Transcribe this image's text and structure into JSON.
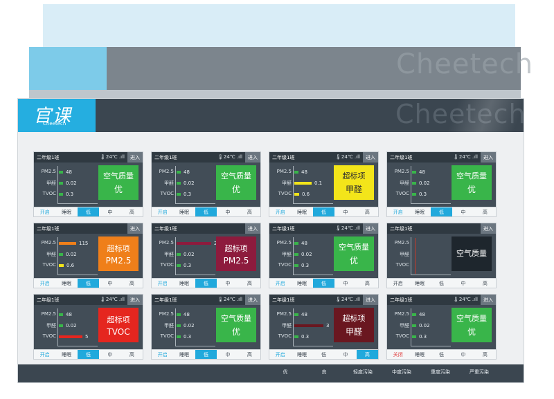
{
  "logo": {
    "main": "官课",
    "sub": "Cheetech"
  },
  "watermark": "Cheetech",
  "colors": {
    "good": "#39b54a",
    "fair": "#f3e51a",
    "light": "#ef7f1a",
    "moderate": "#e5261f",
    "heavy": "#8d1b3d",
    "severe": "#6a1720"
  },
  "metric_labels": [
    "PM2.5",
    "甲醛",
    "TVOC"
  ],
  "enter_label": "进入",
  "status_text": "🌡24℃ .ıll",
  "controls_default": [
    "开启",
    "睡眠",
    "低",
    "中",
    "高"
  ],
  "cards": [
    {
      "title": "二年级1班",
      "status": "🌡24℃ .ıll",
      "values": [
        "48",
        "0.02",
        "0.3"
      ],
      "levels": [
        0.1,
        0.05,
        0.03
      ],
      "barColors": [
        "#39b54a",
        "#39b54a",
        "#39b54a"
      ],
      "badge": {
        "line1": "空气质量",
        "line2": "优",
        "color": "green"
      },
      "controls": [
        "开启",
        "睡眠",
        "低",
        "中",
        "高"
      ],
      "active": 2,
      "power": "on"
    },
    {
      "title": "二年级1班",
      "status": "🌡24℃ .ıll",
      "values": [
        "48",
        "0.02",
        "0.3"
      ],
      "levels": [
        0.1,
        0.05,
        0.03
      ],
      "barColors": [
        "#39b54a",
        "#39b54a",
        "#39b54a"
      ],
      "badge": {
        "line1": "空气质量",
        "line2": "优",
        "color": "green"
      },
      "controls": [
        "开启",
        "睡眠",
        "低",
        "中",
        "高"
      ],
      "active": 2,
      "power": "on"
    },
    {
      "title": "二年级1班",
      "status": "🌡24℃ .ıll",
      "values": [
        "48",
        "0.1",
        "0.6"
      ],
      "levels": [
        0.1,
        0.45,
        0.12
      ],
      "barColors": [
        "#39b54a",
        "#f3e51a",
        "#f3e51a"
      ],
      "badge": {
        "line1": "超标项",
        "line2": "甲醛",
        "color": "yellow"
      },
      "controls": [
        "开启",
        "睡眠",
        "低",
        "中",
        "高"
      ],
      "active": 2,
      "power": "on"
    },
    {
      "title": "二年级1班",
      "status": "🌡24℃ .ıll",
      "values": [
        "48",
        "0.02",
        "0.3"
      ],
      "levels": [
        0.1,
        0.05,
        0.03
      ],
      "barColors": [
        "#39b54a",
        "#39b54a",
        "#39b54a"
      ],
      "badge": {
        "line1": "空气质量",
        "line2": "优",
        "color": "green"
      },
      "controls": [
        "开启",
        "睡眠",
        "低",
        "中",
        "高"
      ],
      "active": 2,
      "power": "on"
    },
    {
      "title": "二年级1班",
      "status": "",
      "values": [
        "115",
        "0.02",
        "0.6"
      ],
      "levels": [
        0.45,
        0.05,
        0.12
      ],
      "barColors": [
        "#ef7f1a",
        "#39b54a",
        "#f3e51a"
      ],
      "badge": {
        "line1": "超标项",
        "line2": "PM2.5",
        "color": "orange"
      },
      "controls": [
        "开启",
        "睡眠",
        "低",
        "中",
        "高"
      ],
      "active": 2,
      "power": "on"
    },
    {
      "title": "二年级1班",
      "status": "",
      "values": [
        "250",
        "0.02",
        "0.3"
      ],
      "levels": [
        0.9,
        0.05,
        0.03
      ],
      "barColors": [
        "#8d1b3d",
        "#39b54a",
        "#39b54a"
      ],
      "badge": {
        "line1": "超标项",
        "line2": "PM2.5",
        "color": "maroon"
      },
      "controls": [
        "开启",
        "睡眠",
        "低",
        "中",
        "高"
      ],
      "active": 2,
      "power": "on"
    },
    {
      "title": "二年级1班",
      "status": "🌡24℃ .ıll",
      "values": [
        "48",
        "0.02",
        "0.3"
      ],
      "levels": [
        0.1,
        0.05,
        0.03
      ],
      "barColors": [
        "#39b54a",
        "#39b54a",
        "#39b54a"
      ],
      "badge": {
        "line1": "空气质量",
        "line2": "优",
        "color": "green"
      },
      "controls": [
        "开启",
        "睡眠",
        "低",
        "中",
        "高"
      ],
      "active": 2,
      "power": "on"
    },
    {
      "title": "二年级1班",
      "status": "",
      "values": [
        "",
        "",
        ""
      ],
      "levels": [
        0,
        0,
        0
      ],
      "barColors": [
        "#39b54a",
        "#39b54a",
        "#39b54a"
      ],
      "badge": {
        "line1": "空气质量",
        "line2": "",
        "color": "dark"
      },
      "controls": [
        "开启",
        "睡眠",
        "低",
        "中",
        "高"
      ],
      "active": -1,
      "power": "idle"
    },
    {
      "title": "二年级1班",
      "status": "🌡24℃ .ıll",
      "values": [
        "48",
        "0.02",
        "5"
      ],
      "levels": [
        0.1,
        0.05,
        0.6
      ],
      "barColors": [
        "#39b54a",
        "#39b54a",
        "#e5261f"
      ],
      "badge": {
        "line1": "超标项",
        "line2": "TVOC",
        "color": "red"
      },
      "controls": [
        "开启",
        "睡眠",
        "低",
        "中",
        "高"
      ],
      "active": 2,
      "power": "on"
    },
    {
      "title": "二年级1班",
      "status": "🌡24℃ .ıll",
      "values": [
        "48",
        "0.02",
        "0.3"
      ],
      "levels": [
        0.1,
        0.05,
        0.03
      ],
      "barColors": [
        "#39b54a",
        "#39b54a",
        "#39b54a"
      ],
      "badge": {
        "line1": "空气质量",
        "line2": "优",
        "color": "green"
      },
      "controls": [
        "开启",
        "睡眠",
        "低",
        "中",
        "高"
      ],
      "active": 2,
      "power": "on"
    },
    {
      "title": "二年级1班",
      "status": "🌡24℃ .ıll",
      "values": [
        "48",
        "3",
        "0.3"
      ],
      "levels": [
        0.1,
        0.75,
        0.03
      ],
      "barColors": [
        "#39b54a",
        "#6a1720",
        "#39b54a"
      ],
      "badge": {
        "line1": "超标项",
        "line2": "甲醛",
        "color": "darkred"
      },
      "controls": [
        "开启",
        "睡眠",
        "低",
        "中",
        "高"
      ],
      "active": 4,
      "power": "on"
    },
    {
      "title": "二年级1班",
      "status": "🌡24℃ .ıll",
      "values": [
        "48",
        "0.02",
        "0.3"
      ],
      "levels": [
        0.1,
        0.05,
        0.03
      ],
      "barColors": [
        "#39b54a",
        "#39b54a",
        "#39b54a"
      ],
      "badge": {
        "line1": "空气质量",
        "line2": "优",
        "color": "green"
      },
      "controls": [
        "关闭",
        "睡眠",
        "低",
        "中",
        "高"
      ],
      "active": -1,
      "power": "off"
    }
  ],
  "legend": [
    {
      "label": "优",
      "color": "#39b54a"
    },
    {
      "label": "良",
      "color": "#f3e51a"
    },
    {
      "label": "轻度污染",
      "color": "#ef7f1a"
    },
    {
      "label": "中度污染",
      "color": "#e5261f"
    },
    {
      "label": "重度污染",
      "color": "#8d1b3d"
    },
    {
      "label": "严重污染",
      "color": "#6a1720"
    }
  ]
}
